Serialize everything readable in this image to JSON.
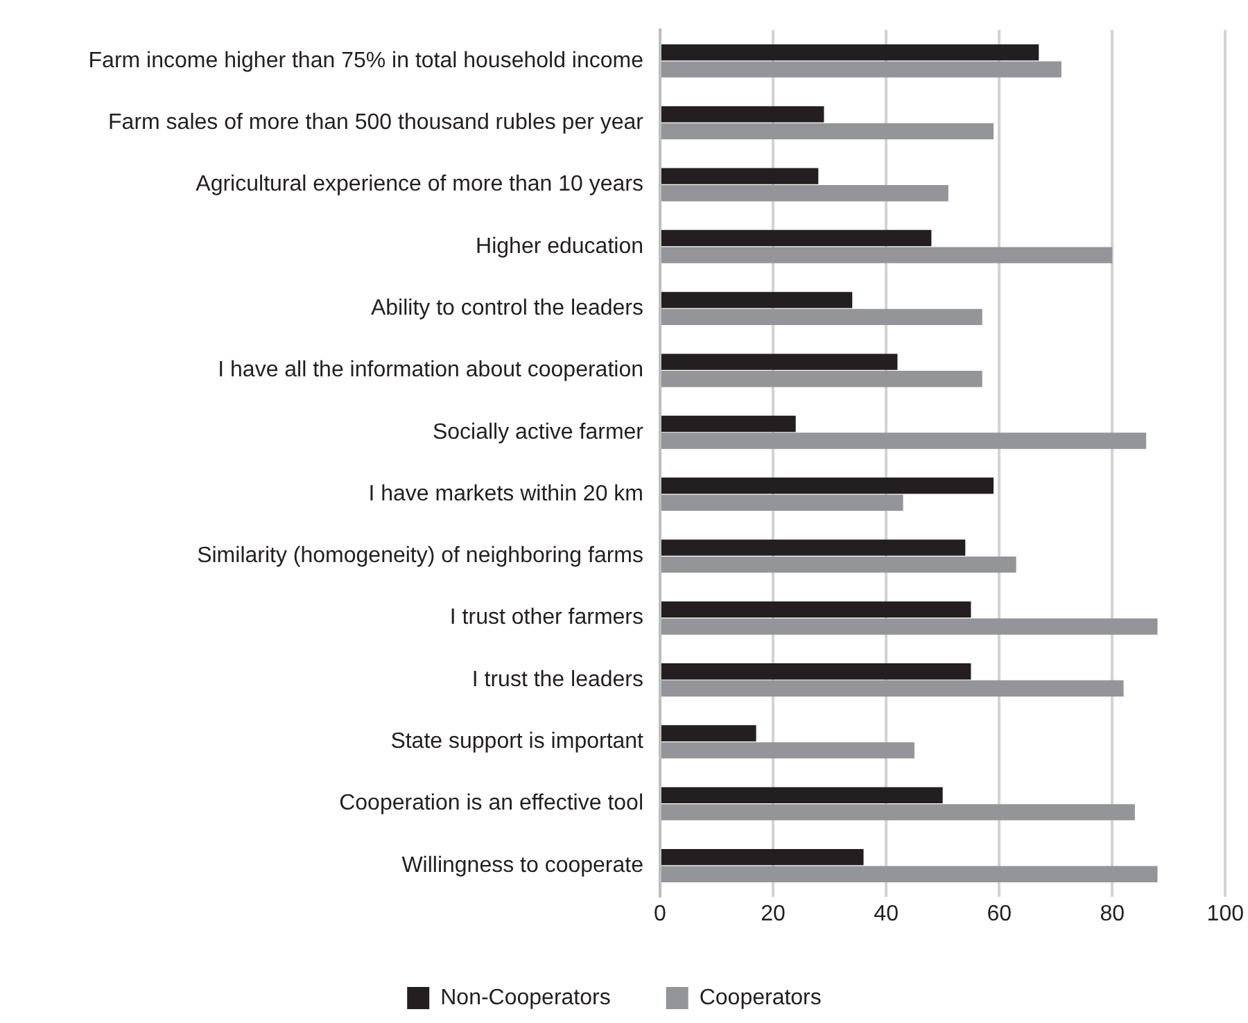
{
  "chart_data": {
    "type": "bar",
    "orientation": "horizontal",
    "categories": [
      "Farm income higher than 75% in total household income",
      "Farm sales of more than 500 thousand rubles per year",
      "Agricultural experience of more than 10 years",
      "Higher education",
      "Ability to control the leaders",
      "I have all the information about cooperation",
      "Socially active farmer",
      "I have markets within 20 km",
      "Similarity (homogeneity) of neighboring farms",
      "I trust other farmers",
      "I trust the leaders",
      "State support is important",
      "Cooperation is an effective tool",
      "Willingness to cooperate"
    ],
    "series": [
      {
        "name": "Non-Cooperators",
        "color": "#231f20",
        "values": [
          67,
          29,
          28,
          48,
          34,
          42,
          24,
          59,
          54,
          55,
          55,
          17,
          50,
          36
        ]
      },
      {
        "name": "Cooperators",
        "color": "#939598",
        "values": [
          71,
          59,
          51,
          80,
          57,
          57,
          86,
          43,
          63,
          88,
          82,
          45,
          84,
          88
        ]
      }
    ],
    "xlim": [
      0,
      100
    ],
    "xticks": [
      0,
      20,
      40,
      60,
      80,
      100
    ],
    "grid": "x",
    "legend": "bottom"
  }
}
